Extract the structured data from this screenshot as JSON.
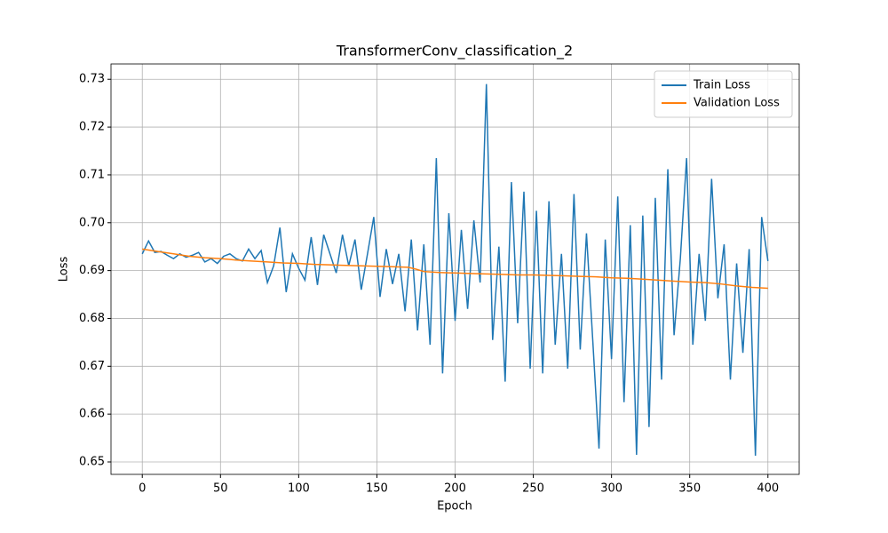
{
  "chart_data": {
    "type": "line",
    "title": "TransformerConv_classification_2",
    "x_label": "Epoch",
    "y_label": "Loss",
    "xlim": [
      -20,
      420
    ],
    "ylim": [
      0.6474,
      0.7332
    ],
    "xticks": [
      0,
      50,
      100,
      150,
      200,
      250,
      300,
      350,
      400
    ],
    "yticks": [
      0.65,
      0.66,
      0.67,
      0.68,
      0.69,
      {
        "value": 0.7,
        "label": "0.70"
      },
      0.71,
      0.72,
      0.73
    ],
    "grid": true,
    "legend": "upper right",
    "series": [
      {
        "name": "Train Loss",
        "color": "#1f77b4",
        "x": [
          0,
          4,
          8,
          12,
          16,
          20,
          24,
          28,
          32,
          36,
          40,
          44,
          48,
          52,
          56,
          60,
          64,
          68,
          72,
          76,
          80,
          84,
          88,
          92,
          96,
          100,
          104,
          108,
          112,
          116,
          120,
          124,
          128,
          132,
          136,
          140,
          144,
          148,
          152,
          156,
          160,
          164,
          168,
          172,
          176,
          180,
          184,
          188,
          192,
          196,
          200,
          204,
          208,
          212,
          216,
          220,
          224,
          228,
          232,
          236,
          240,
          244,
          248,
          252,
          256,
          260,
          264,
          268,
          272,
          276,
          280,
          284,
          288,
          292,
          296,
          300,
          304,
          308,
          312,
          316,
          320,
          324,
          328,
          332,
          336,
          340,
          344,
          348,
          352,
          356,
          360,
          364,
          368,
          372,
          376,
          380,
          384,
          388,
          392,
          396,
          400
        ],
        "values": [
          0.6935,
          0.6962,
          0.6938,
          0.694,
          0.6932,
          0.6925,
          0.6935,
          0.6928,
          0.6932,
          0.6938,
          0.6918,
          0.6925,
          0.6915,
          0.693,
          0.6935,
          0.6925,
          0.692,
          0.6945,
          0.6925,
          0.6942,
          0.6875,
          0.691,
          0.699,
          0.6855,
          0.6935,
          0.6905,
          0.688,
          0.697,
          0.687,
          0.6975,
          0.6935,
          0.6895,
          0.6975,
          0.691,
          0.6965,
          0.686,
          0.6935,
          0.7012,
          0.6845,
          0.6945,
          0.6872,
          0.6935,
          0.6815,
          0.6965,
          0.6775,
          0.6955,
          0.6745,
          0.7135,
          0.6685,
          0.702,
          0.6795,
          0.6985,
          0.682,
          0.7005,
          0.6875,
          0.729,
          0.6755,
          0.695,
          0.6668,
          0.7085,
          0.679,
          0.7065,
          0.6695,
          0.7025,
          0.6685,
          0.7045,
          0.6745,
          0.6935,
          0.6695,
          0.706,
          0.6735,
          0.6978,
          0.6755,
          0.6528,
          0.6965,
          0.6715,
          0.7055,
          0.6625,
          0.6995,
          0.6515,
          0.7015,
          0.6573,
          0.7052,
          0.6672,
          0.7112,
          0.6765,
          0.6925,
          0.7135,
          0.6745,
          0.6935,
          0.6795,
          0.7092,
          0.6842,
          0.6955,
          0.6672,
          0.6915,
          0.6728,
          0.6945,
          0.6513,
          0.7012,
          0.692
        ]
      },
      {
        "name": "Validation Loss",
        "color": "#ff7f0e",
        "x": [
          0,
          10,
          20,
          30,
          40,
          50,
          60,
          70,
          80,
          90,
          100,
          110,
          120,
          130,
          140,
          150,
          160,
          170,
          175,
          180,
          190,
          200,
          210,
          220,
          230,
          240,
          250,
          260,
          270,
          280,
          290,
          300,
          310,
          320,
          330,
          340,
          350,
          360,
          370,
          380,
          390,
          400
        ],
        "values": [
          0.6945,
          0.694,
          0.6935,
          0.693,
          0.6927,
          0.6925,
          0.6922,
          0.692,
          0.6918,
          0.6916,
          0.6915,
          0.6913,
          0.6912,
          0.6911,
          0.691,
          0.6909,
          0.6908,
          0.6907,
          0.6903,
          0.6898,
          0.6896,
          0.6895,
          0.6894,
          0.6893,
          0.6892,
          0.6891,
          0.6891,
          0.689,
          0.6889,
          0.6888,
          0.6887,
          0.6885,
          0.6884,
          0.6882,
          0.688,
          0.6878,
          0.6876,
          0.6875,
          0.6872,
          0.6868,
          0.6865,
          0.6863
        ]
      }
    ]
  }
}
